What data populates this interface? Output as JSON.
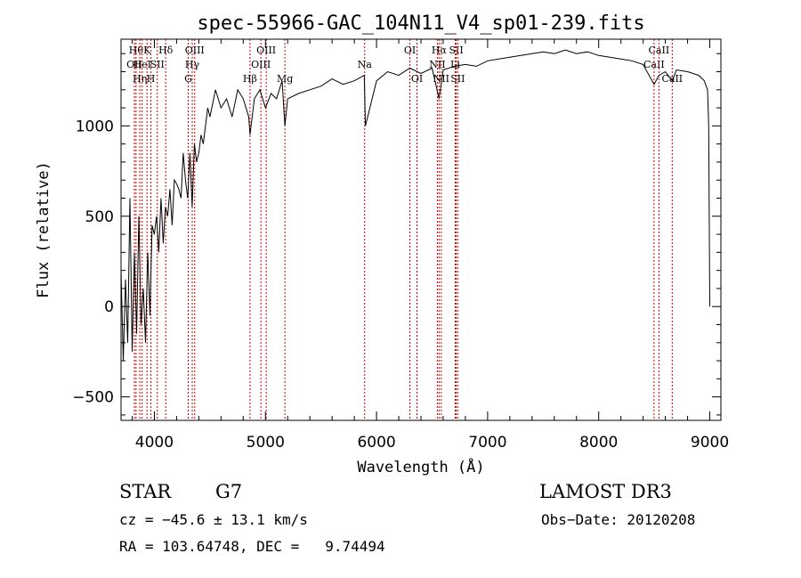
{
  "chart_data": {
    "type": "line",
    "title": "spec-55966-GAC_104N11_V4_sp01-239.fits",
    "xlabel": "Wavelength (Å)",
    "ylabel": "Flux (relative)",
    "xlim": [
      3700,
      9100
    ],
    "ylim": [
      -630,
      1480
    ],
    "xticks": [
      4000,
      5000,
      6000,
      7000,
      8000,
      9000
    ],
    "yticks": [
      -500,
      0,
      500,
      1000
    ],
    "grid": false,
    "legend": "none",
    "series": [
      {
        "name": "spectrum",
        "x": [
          3700,
          3720,
          3740,
          3760,
          3780,
          3800,
          3820,
          3840,
          3860,
          3880,
          3900,
          3920,
          3940,
          3960,
          3980,
          4000,
          4020,
          4040,
          4060,
          4080,
          4100,
          4120,
          4140,
          4160,
          4180,
          4200,
          4220,
          4240,
          4260,
          4280,
          4300,
          4320,
          4340,
          4360,
          4380,
          4400,
          4420,
          4440,
          4460,
          4480,
          4500,
          4550,
          4600,
          4650,
          4700,
          4750,
          4800,
          4850,
          4861,
          4900,
          4950,
          5000,
          5050,
          5100,
          5150,
          5175,
          5200,
          5300,
          5400,
          5500,
          5600,
          5700,
          5800,
          5890,
          5900,
          6000,
          6100,
          6200,
          6300,
          6400,
          6500,
          6563,
          6600,
          6700,
          6800,
          6900,
          7000,
          7100,
          7200,
          7300,
          7400,
          7500,
          7600,
          7700,
          7800,
          7900,
          8000,
          8100,
          8200,
          8300,
          8400,
          8498,
          8542,
          8600,
          8662,
          8700,
          8800,
          8850,
          8900,
          8950,
          8980,
          8990,
          9000
        ],
        "y": [
          200,
          -300,
          150,
          -200,
          600,
          -250,
          300,
          -150,
          500,
          -100,
          100,
          -200,
          300,
          -50,
          450,
          400,
          500,
          300,
          600,
          350,
          550,
          500,
          650,
          450,
          700,
          680,
          650,
          600,
          850,
          700,
          600,
          850,
          550,
          900,
          800,
          850,
          950,
          900,
          1000,
          1100,
          1050,
          1200,
          1100,
          1150,
          1050,
          1200,
          1150,
          1050,
          950,
          1150,
          1200,
          1100,
          1180,
          1150,
          1250,
          1000,
          1150,
          1180,
          1200,
          1220,
          1260,
          1230,
          1250,
          1280,
          1000,
          1250,
          1300,
          1280,
          1320,
          1290,
          1320,
          1150,
          1310,
          1330,
          1340,
          1330,
          1360,
          1370,
          1380,
          1390,
          1400,
          1410,
          1400,
          1420,
          1400,
          1410,
          1390,
          1380,
          1370,
          1360,
          1340,
          1230,
          1280,
          1300,
          1250,
          1310,
          1300,
          1290,
          1280,
          1250,
          1200,
          1000,
          0
        ]
      }
    ],
    "lines": [
      {
        "wl": 3820,
        "label": "OII",
        "row": 1
      },
      {
        "wl": 3835,
        "label": "Hθ",
        "row": 0
      },
      {
        "wl": 3869,
        "label": "Hη",
        "row": 2
      },
      {
        "wl": 3890,
        "label": "HeI",
        "row": 1
      },
      {
        "wl": 3934,
        "label": "K",
        "row": 0
      },
      {
        "wl": 3969,
        "label": "H",
        "row": 2
      },
      {
        "wl": 4026,
        "label": "SII",
        "row": 1
      },
      {
        "wl": 4102,
        "label": "Hδ",
        "row": 0
      },
      {
        "wl": 4305,
        "label": "G",
        "row": 2
      },
      {
        "wl": 4341,
        "label": "Hγ",
        "row": 1
      },
      {
        "wl": 4363,
        "label": "OIII",
        "row": 0
      },
      {
        "wl": 4861,
        "label": "Hβ",
        "row": 2
      },
      {
        "wl": 4959,
        "label": "OIII",
        "row": 1
      },
      {
        "wl": 5007,
        "label": "OIII",
        "row": 0
      },
      {
        "wl": 5175,
        "label": "Mg",
        "row": 2
      },
      {
        "wl": 5893,
        "label": "Na",
        "row": 1
      },
      {
        "wl": 6300,
        "label": "OI",
        "row": 0
      },
      {
        "wl": 6364,
        "label": "OI",
        "row": 2
      },
      {
        "wl": 6548,
        "label": "NII",
        "row": 1
      },
      {
        "wl": 6563,
        "label": "Hα",
        "row": 0
      },
      {
        "wl": 6583,
        "label": "NII",
        "row": 2
      },
      {
        "wl": 6717,
        "label": "SII",
        "row": 0
      },
      {
        "wl": 6731,
        "label": "SII",
        "row": 2
      },
      {
        "wl": 6708,
        "label": "Li",
        "row": 1
      },
      {
        "wl": 8498,
        "label": "CaII",
        "row": 1
      },
      {
        "wl": 8542,
        "label": "CaII",
        "row": 0
      },
      {
        "wl": 8662,
        "label": "CaII",
        "row": 2
      }
    ]
  },
  "info": {
    "class": "STAR",
    "subclass": "G7",
    "survey": "LAMOST DR3",
    "cz": "cz = −45.6 ± 13.1 km/s",
    "obs_date": "Obs−Date: 20120208",
    "coords": "RA = 103.64748, DEC =   9.74494"
  },
  "colors": {
    "axis": "#000000",
    "spectrum": "#000000",
    "line_marker": "#cc0000"
  }
}
